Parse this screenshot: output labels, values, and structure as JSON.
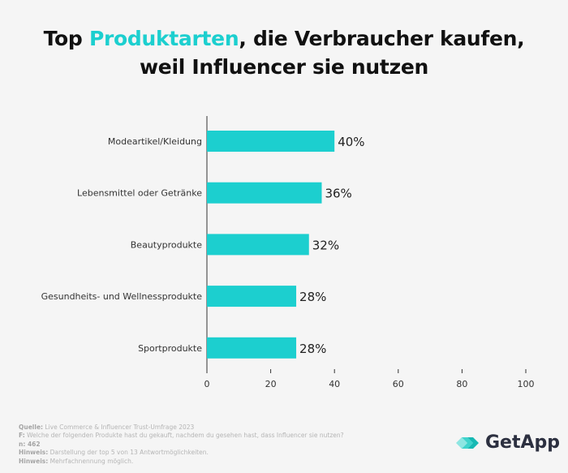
{
  "title": {
    "pre": "Top ",
    "accent": "Produktarten",
    "post": ", die Verbraucher kaufen,",
    "line2": "weil Influencer sie nutzen"
  },
  "colors": {
    "bar": "#1ccfcf",
    "accent": "#1ccfcf",
    "text": "#222222"
  },
  "chart_data": {
    "type": "bar",
    "orientation": "horizontal",
    "categories": [
      "Modeartikel/Kleidung",
      "Lebensmittel oder Getränke",
      "Beautyprodukte",
      "Gesundheits- und Wellnessprodukte",
      "Sportprodukte"
    ],
    "values": [
      40,
      36,
      32,
      28,
      28
    ],
    "data_labels": [
      "40%",
      "36%",
      "32%",
      "28%",
      "28%"
    ],
    "xlim": [
      0,
      100
    ],
    "xticks": [
      "0",
      "20",
      "40",
      "60",
      "80",
      "100"
    ],
    "grid": false
  },
  "footer": {
    "source_label": "Quelle:",
    "source": " Live Commerce & Influencer Trust-Umfrage 2023",
    "q_label": "F:",
    "q": " Welche der folgenden Produkte hast du gekauft, nachdem du gesehen hast, dass Influencer sie nutzen?",
    "n_label": "n: 462",
    "note1_label": "Hinweis:",
    "note1": " Darstellung der top 5 von 13 Antwortmöglichkeiten.",
    "note2_label": "Hinweis:",
    "note2": " Mehrfachnennung möglich."
  },
  "logo": {
    "text": "GetApp",
    "icon": "getapp-chevrons-icon"
  }
}
